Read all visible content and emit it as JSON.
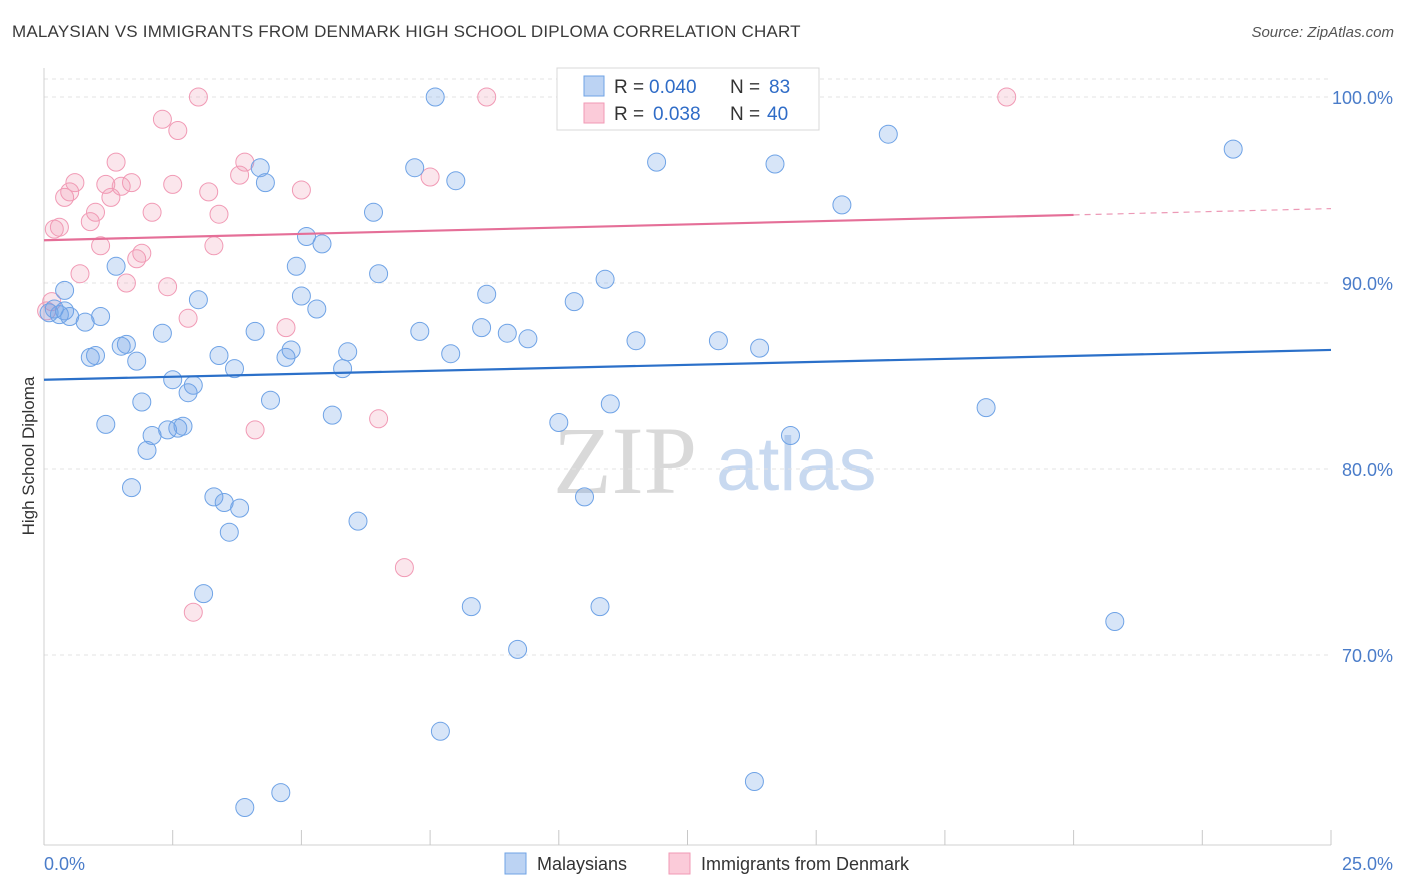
{
  "title": "MALAYSIAN VS IMMIGRANTS FROM DENMARK HIGH SCHOOL DIPLOMA CORRELATION CHART",
  "source": "Source: ZipAtlas.com",
  "colors": {
    "blue": "#6fa3e6",
    "blue_line": "#2b70c9",
    "pink": "#f19ab5",
    "pink_line": "#e56f98"
  },
  "watermark": {
    "zip": "ZIP",
    "atlas": "atlas"
  },
  "legend": {
    "rows": [
      {
        "r_label": "R =",
        "r_value": "0.040",
        "n_label": "N =",
        "n_value": "83"
      },
      {
        "r_label": "R =",
        "r_value": "0.038",
        "n_label": "N =",
        "n_value": "40"
      }
    ]
  },
  "chart_data": {
    "type": "scatter",
    "title": "MALAYSIAN VS IMMIGRANTS FROM DENMARK HIGH SCHOOL DIPLOMA CORRELATION CHART",
    "xlabel": "",
    "ylabel": "High School Diploma",
    "xlim": [
      0,
      25
    ],
    "ylim": [
      60,
      102
    ],
    "x_tick_labels": [
      {
        "value": 0,
        "label": "0.0%"
      },
      {
        "value": 25,
        "label": "25.0%"
      }
    ],
    "y_tick_labels": [
      {
        "value": 70,
        "label": "70.0%"
      },
      {
        "value": 80,
        "label": "80.0%"
      },
      {
        "value": 90,
        "label": "90.0%"
      },
      {
        "value": 100,
        "label": "100.0%"
      }
    ],
    "x_minor_ticks": [
      0,
      2.5,
      5,
      7.5,
      10,
      12.5,
      15,
      17.5,
      20,
      22.5,
      25
    ],
    "series": [
      {
        "name": "Malaysians",
        "color": "#6fa3e6",
        "r": "0.040",
        "n": "83",
        "trend": {
          "x0": 0,
          "y0": 84.8,
          "x1": 25,
          "y1": 86.4,
          "x_solid_end": 25
        },
        "points": [
          [
            0.1,
            88.4
          ],
          [
            0.2,
            88.6
          ],
          [
            0.3,
            88.3
          ],
          [
            0.4,
            89.6
          ],
          [
            0.4,
            88.5
          ],
          [
            0.5,
            88.2
          ],
          [
            0.8,
            87.9
          ],
          [
            0.9,
            86.0
          ],
          [
            1.0,
            86.1
          ],
          [
            1.1,
            88.2
          ],
          [
            1.2,
            82.4
          ],
          [
            1.4,
            90.9
          ],
          [
            1.5,
            86.6
          ],
          [
            1.6,
            86.7
          ],
          [
            1.7,
            79.0
          ],
          [
            1.8,
            85.8
          ],
          [
            1.9,
            83.6
          ],
          [
            2.0,
            81.0
          ],
          [
            2.1,
            81.8
          ],
          [
            2.3,
            87.3
          ],
          [
            2.4,
            82.1
          ],
          [
            2.5,
            84.8
          ],
          [
            2.6,
            82.2
          ],
          [
            2.7,
            82.3
          ],
          [
            2.8,
            84.1
          ],
          [
            2.9,
            84.5
          ],
          [
            3.0,
            89.1
          ],
          [
            3.1,
            73.3
          ],
          [
            3.3,
            78.5
          ],
          [
            3.4,
            86.1
          ],
          [
            3.5,
            78.2
          ],
          [
            3.6,
            76.6
          ],
          [
            3.7,
            85.4
          ],
          [
            3.8,
            77.9
          ],
          [
            3.9,
            61.8
          ],
          [
            4.1,
            87.4
          ],
          [
            4.2,
            96.2
          ],
          [
            4.3,
            95.4
          ],
          [
            4.4,
            83.7
          ],
          [
            4.6,
            62.6
          ],
          [
            4.7,
            86.0
          ],
          [
            4.8,
            86.4
          ],
          [
            4.9,
            90.9
          ],
          [
            5.0,
            89.3
          ],
          [
            5.1,
            92.5
          ],
          [
            5.3,
            88.6
          ],
          [
            5.4,
            92.1
          ],
          [
            5.6,
            82.9
          ],
          [
            5.8,
            85.4
          ],
          [
            5.9,
            86.3
          ],
          [
            6.1,
            77.2
          ],
          [
            6.4,
            93.8
          ],
          [
            6.5,
            90.5
          ],
          [
            7.2,
            96.2
          ],
          [
            7.3,
            87.4
          ],
          [
            7.6,
            100.0
          ],
          [
            7.7,
            65.9
          ],
          [
            7.9,
            86.2
          ],
          [
            8.0,
            95.5
          ],
          [
            8.3,
            72.6
          ],
          [
            8.5,
            87.6
          ],
          [
            8.6,
            89.4
          ],
          [
            9.0,
            87.3
          ],
          [
            9.2,
            70.3
          ],
          [
            9.4,
            87.0
          ],
          [
            10.0,
            82.5
          ],
          [
            10.3,
            89.0
          ],
          [
            10.5,
            78.5
          ],
          [
            10.8,
            72.6
          ],
          [
            10.9,
            90.2
          ],
          [
            11.0,
            83.5
          ],
          [
            11.5,
            86.9
          ],
          [
            11.9,
            96.5
          ],
          [
            13.1,
            86.9
          ],
          [
            13.8,
            63.2
          ],
          [
            13.9,
            86.5
          ],
          [
            14.2,
            96.4
          ],
          [
            14.5,
            81.8
          ],
          [
            15.5,
            94.2
          ],
          [
            16.4,
            98.0
          ],
          [
            18.3,
            83.3
          ],
          [
            20.8,
            71.8
          ],
          [
            23.1,
            97.2
          ]
        ]
      },
      {
        "name": "Immigrants from Denmark",
        "color": "#f19ab5",
        "r": "0.038",
        "n": "40",
        "trend": {
          "x0": 0,
          "y0": 92.3,
          "x1": 25,
          "y1": 94.0,
          "x_solid_end": 20.0
        },
        "points": [
          [
            0.05,
            88.5
          ],
          [
            0.2,
            92.9
          ],
          [
            0.3,
            93.0
          ],
          [
            0.4,
            94.6
          ],
          [
            0.5,
            94.9
          ],
          [
            0.6,
            95.4
          ],
          [
            0.7,
            90.5
          ],
          [
            0.9,
            93.3
          ],
          [
            1.0,
            93.8
          ],
          [
            1.1,
            92.0
          ],
          [
            1.2,
            95.3
          ],
          [
            1.3,
            94.6
          ],
          [
            1.4,
            96.5
          ],
          [
            1.5,
            95.2
          ],
          [
            1.6,
            90.0
          ],
          [
            1.7,
            95.4
          ],
          [
            1.8,
            91.3
          ],
          [
            1.9,
            91.6
          ],
          [
            2.1,
            93.8
          ],
          [
            2.3,
            98.8
          ],
          [
            2.4,
            89.8
          ],
          [
            2.5,
            95.3
          ],
          [
            2.6,
            98.2
          ],
          [
            2.8,
            88.1
          ],
          [
            2.9,
            72.3
          ],
          [
            3.0,
            100.0
          ],
          [
            3.2,
            94.9
          ],
          [
            3.3,
            92.0
          ],
          [
            3.4,
            93.7
          ],
          [
            3.8,
            95.8
          ],
          [
            3.9,
            96.5
          ],
          [
            4.1,
            82.1
          ],
          [
            4.7,
            87.6
          ],
          [
            5.0,
            95.0
          ],
          [
            6.5,
            82.7
          ],
          [
            7.0,
            74.7
          ],
          [
            7.5,
            95.7
          ],
          [
            8.6,
            100.0
          ],
          [
            18.7,
            100.0
          ],
          [
            0.15,
            89.0
          ]
        ]
      }
    ]
  }
}
